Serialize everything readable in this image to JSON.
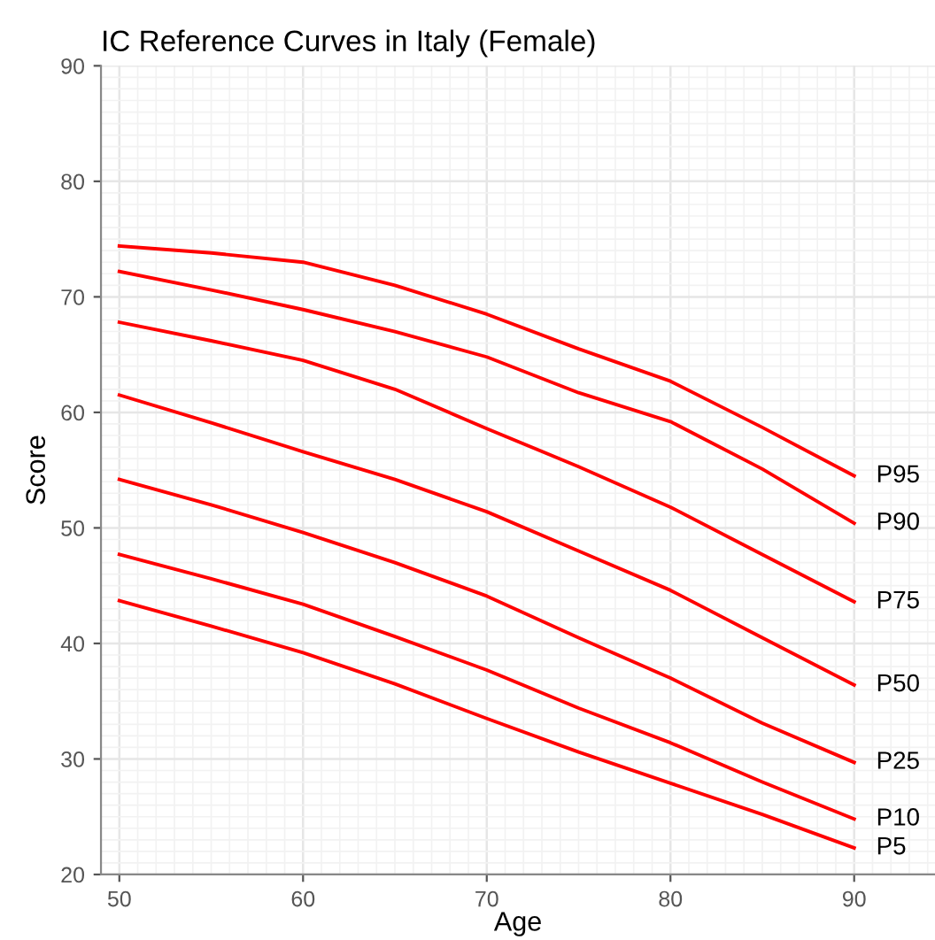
{
  "chart_data": {
    "type": "line",
    "title": "IC Reference Curves in Italy (Female)",
    "xlabel": "Age",
    "ylabel": "Score",
    "x": [
      50,
      55,
      60,
      65,
      70,
      75,
      80,
      85,
      90
    ],
    "series": [
      {
        "name": "P95",
        "color": "#ff0000",
        "values": [
          74.4,
          73.8,
          73.0,
          71.0,
          68.5,
          65.5,
          62.7,
          58.7,
          54.5
        ]
      },
      {
        "name": "P90",
        "color": "#ff0000",
        "values": [
          72.2,
          70.6,
          68.9,
          67.0,
          64.8,
          61.7,
          59.2,
          55.1,
          50.4
        ]
      },
      {
        "name": "P75",
        "color": "#ff0000",
        "values": [
          67.8,
          66.2,
          64.5,
          62.0,
          58.6,
          55.3,
          51.8,
          47.7,
          43.6
        ]
      },
      {
        "name": "P50",
        "color": "#ff0000",
        "values": [
          61.5,
          59.1,
          56.6,
          54.2,
          51.4,
          48.0,
          44.6,
          40.5,
          36.4
        ]
      },
      {
        "name": "P25",
        "color": "#ff0000",
        "values": [
          54.2,
          52.0,
          49.6,
          47.0,
          44.1,
          40.5,
          37.0,
          33.1,
          29.7
        ]
      },
      {
        "name": "P10",
        "color": "#ff0000",
        "values": [
          47.7,
          45.6,
          43.4,
          40.6,
          37.7,
          34.4,
          31.4,
          28.0,
          24.8
        ]
      },
      {
        "name": "P5",
        "color": "#ff0000",
        "values": [
          43.7,
          41.5,
          39.2,
          36.5,
          33.5,
          30.6,
          27.9,
          25.2,
          22.3
        ]
      }
    ],
    "xlim": [
      49,
      94.4
    ],
    "ylim": [
      20,
      90
    ],
    "xticks": [
      50,
      60,
      70,
      80,
      90
    ],
    "yticks": [
      20,
      30,
      40,
      50,
      60,
      70,
      80,
      90
    ],
    "grid": true,
    "legend": false,
    "marker": "none",
    "line_style": "solid"
  }
}
